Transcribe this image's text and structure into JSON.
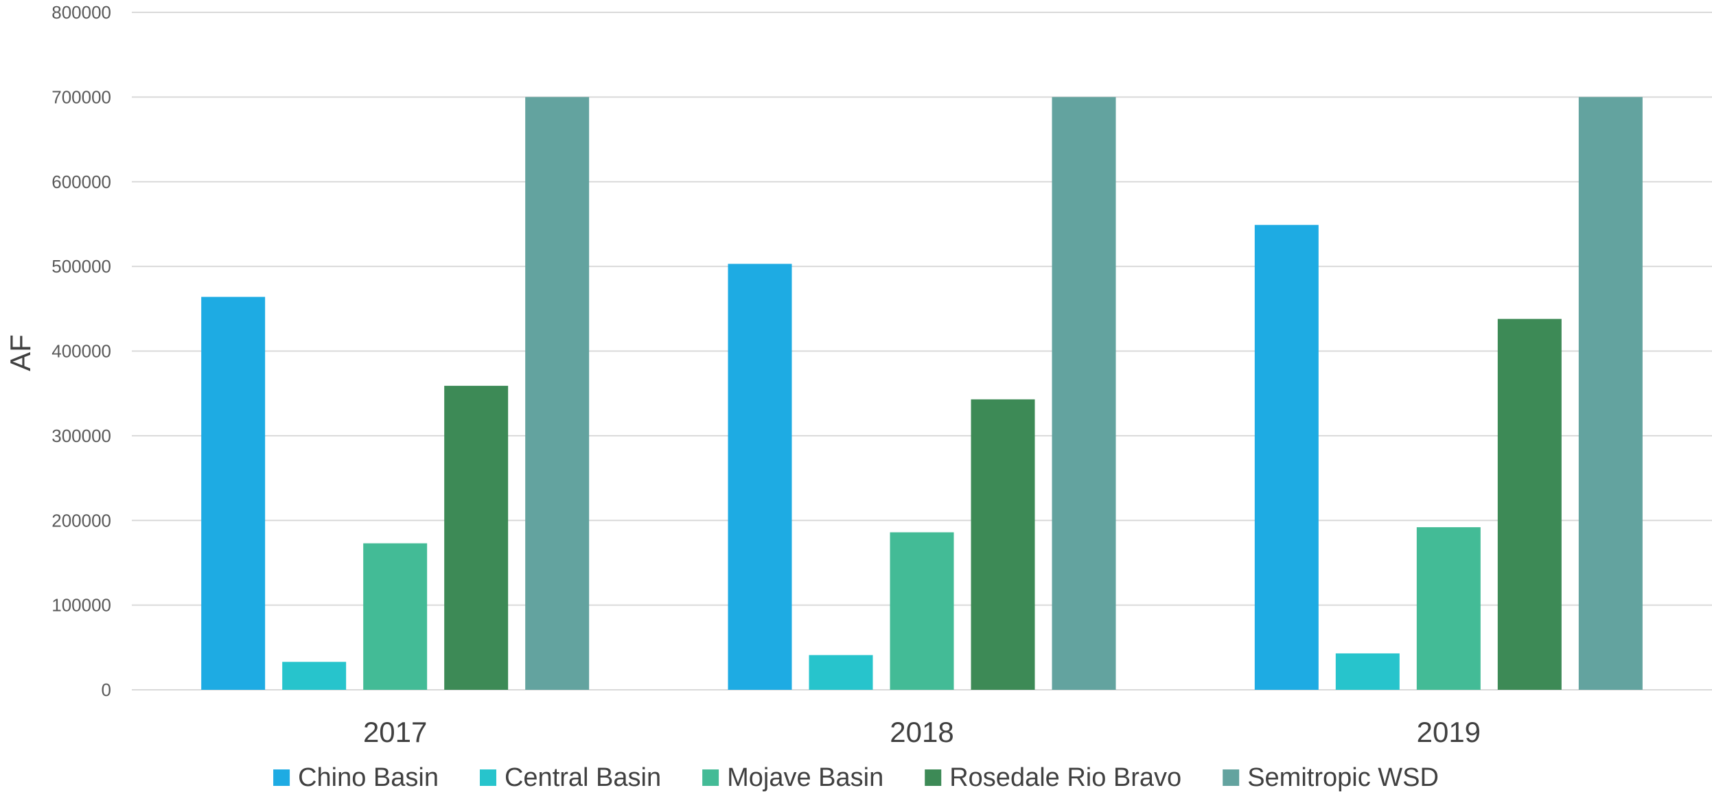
{
  "chart_data": {
    "type": "bar",
    "title": "",
    "xlabel": "",
    "ylabel": "AF",
    "ylim": [
      0,
      800000
    ],
    "yticks": [
      0,
      100000,
      200000,
      300000,
      400000,
      500000,
      600000,
      700000,
      800000
    ],
    "grid": true,
    "legend_position": "bottom",
    "categories": [
      "2017",
      "2018",
      "2019"
    ],
    "series": [
      {
        "name": "Chino Basin",
        "color": "#1eabe3",
        "values": [
          464000,
          503000,
          549000
        ]
      },
      {
        "name": "Central Basin",
        "color": "#27c4cc",
        "values": [
          33000,
          41000,
          43000
        ]
      },
      {
        "name": "Mojave Basin",
        "color": "#43bb96",
        "values": [
          173000,
          186000,
          192000
        ]
      },
      {
        "name": "Rosedale Rio Bravo",
        "color": "#3d8a56",
        "values": [
          359000,
          343000,
          438000
        ]
      },
      {
        "name": "Semitropic WSD",
        "color": "#63a39f",
        "values": [
          700000,
          700000,
          700000
        ]
      }
    ]
  }
}
